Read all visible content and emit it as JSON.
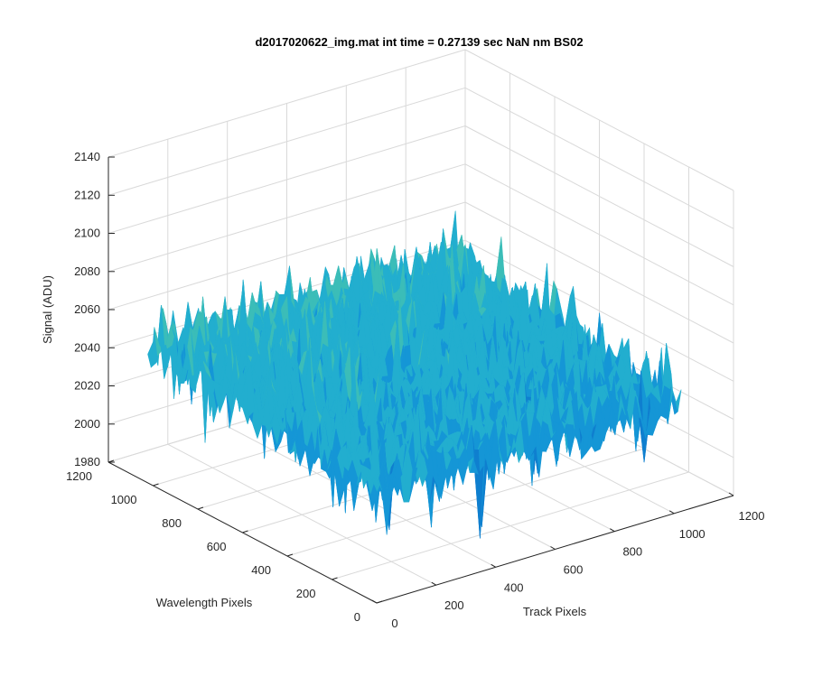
{
  "chart_data": {
    "type": "surface",
    "title": "d2017020622_img.mat int time = 0.27139 sec  NaN nm BS02",
    "xlabel": "Track Pixels",
    "ylabel": "Wavelength Pixels",
    "zlabel": "Signal (ADU)",
    "xlim": [
      0,
      1200
    ],
    "ylim": [
      0,
      1200
    ],
    "zlim": [
      1980,
      2140
    ],
    "xticks": [
      "0",
      "200",
      "400",
      "600",
      "800",
      "1000",
      "1200"
    ],
    "yticks": [
      "0",
      "200",
      "400",
      "600",
      "800",
      "1000",
      "1200"
    ],
    "zticks": [
      "1980",
      "2000",
      "2020",
      "2040",
      "2060",
      "2080",
      "2100",
      "2120",
      "2140"
    ],
    "grid": true,
    "surface": {
      "x_range": [
        0,
        1024
      ],
      "y_range": [
        0,
        1024
      ],
      "mean_level": 2045,
      "typical_min": 2000,
      "typical_max": 2125,
      "colormap": "parula",
      "note_colors": [
        "#0072bd",
        "#19b2d6",
        "#5bc8a0",
        "#c8d656"
      ]
    }
  }
}
